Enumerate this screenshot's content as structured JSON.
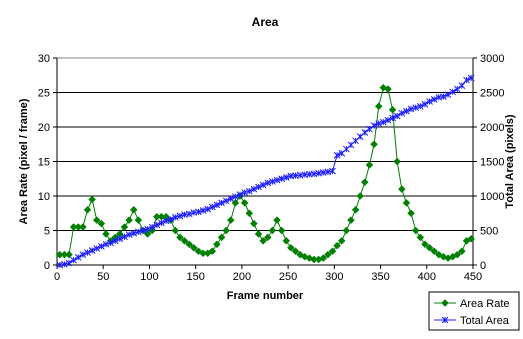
{
  "chart_data": {
    "type": "line",
    "title": "Area",
    "xlabel": "Frame number",
    "ylabel_left": "Area Rate (pixel / frame)",
    "ylabel_right": "Total Area (pixels)",
    "xlim": [
      0,
      450
    ],
    "ylim_left": [
      0,
      30
    ],
    "ylim_right": [
      0,
      3000
    ],
    "x_ticks": [
      0,
      50,
      100,
      150,
      200,
      250,
      300,
      350,
      400,
      450
    ],
    "y_left_ticks": [
      0,
      5,
      10,
      15,
      20,
      25,
      30
    ],
    "y_right_ticks": [
      0,
      500,
      1000,
      1500,
      2000,
      2500,
      3000
    ],
    "grid": "horizontal",
    "legend_position": "bottom-right",
    "colors": {
      "area_rate": "#008000",
      "total_area": "#1a1aff"
    },
    "series": [
      {
        "name": "Area Rate",
        "axis": "left",
        "marker": "diamond",
        "x": [
          3,
          8,
          13,
          18,
          23,
          28,
          33,
          38,
          43,
          48,
          53,
          58,
          63,
          68,
          73,
          78,
          83,
          88,
          93,
          98,
          103,
          108,
          113,
          118,
          123,
          128,
          133,
          138,
          143,
          148,
          153,
          158,
          163,
          168,
          173,
          178,
          183,
          188,
          193,
          198,
          203,
          208,
          213,
          218,
          223,
          228,
          233,
          238,
          243,
          248,
          253,
          258,
          263,
          268,
          273,
          278,
          283,
          288,
          293,
          298,
          303,
          308,
          313,
          318,
          323,
          328,
          333,
          338,
          343,
          348,
          353,
          358,
          363,
          368,
          373,
          378,
          383,
          388,
          393,
          398,
          403,
          408,
          413,
          418,
          423,
          428,
          433,
          438,
          443,
          448
        ],
        "values": [
          1.5,
          1.5,
          1.5,
          5.5,
          5.5,
          5.5,
          8,
          9.5,
          6.5,
          6,
          4.5,
          3.5,
          4,
          4.5,
          5.5,
          6.5,
          8,
          6.5,
          5,
          4.5,
          5,
          7,
          7,
          7,
          6.5,
          5,
          4,
          3.5,
          3,
          2.5,
          2,
          1.7,
          1.7,
          2,
          3,
          4,
          5,
          6.5,
          9,
          10,
          9,
          7.5,
          6,
          4.5,
          3.5,
          4,
          5,
          6.5,
          5,
          3.5,
          2.5,
          2,
          1.5,
          1.2,
          1,
          0.8,
          0.8,
          1,
          1.5,
          2,
          2.8,
          3.5,
          5,
          6.5,
          8,
          10,
          12,
          14.5,
          17.5,
          23,
          25.7,
          25.5,
          22.5,
          15,
          11,
          9,
          7.5,
          5,
          4,
          3,
          2.5,
          2,
          1.5,
          1.2,
          1,
          1.2,
          1.5,
          2,
          3.5,
          3.8
        ]
      },
      {
        "name": "Total Area",
        "axis": "right",
        "marker": "star",
        "x": [
          3,
          8,
          13,
          18,
          23,
          28,
          33,
          38,
          43,
          48,
          53,
          58,
          63,
          68,
          73,
          78,
          83,
          88,
          93,
          98,
          103,
          108,
          113,
          118,
          123,
          128,
          133,
          138,
          143,
          148,
          153,
          158,
          163,
          168,
          173,
          178,
          183,
          188,
          193,
          198,
          203,
          208,
          213,
          218,
          223,
          228,
          233,
          238,
          243,
          248,
          253,
          258,
          263,
          268,
          273,
          278,
          283,
          288,
          293,
          298,
          303,
          308,
          313,
          318,
          323,
          328,
          333,
          338,
          343,
          348,
          353,
          358,
          363,
          368,
          373,
          378,
          383,
          388,
          393,
          398,
          403,
          408,
          413,
          418,
          423,
          428,
          433,
          438,
          443,
          448
        ],
        "values": [
          0,
          10,
          30,
          70,
          110,
          150,
          180,
          210,
          240,
          270,
          300,
          320,
          350,
          380,
          410,
          440,
          460,
          480,
          500,
          520,
          550,
          580,
          610,
          640,
          660,
          690,
          710,
          730,
          740,
          760,
          770,
          790,
          810,
          840,
          870,
          900,
          930,
          960,
          990,
          1020,
          1050,
          1070,
          1100,
          1130,
          1160,
          1190,
          1210,
          1230,
          1250,
          1270,
          1290,
          1295,
          1300,
          1310,
          1315,
          1320,
          1330,
          1340,
          1350,
          1360,
          1590,
          1620,
          1680,
          1740,
          1800,
          1860,
          1920,
          1970,
          2020,
          2050,
          2070,
          2100,
          2130,
          2160,
          2200,
          2230,
          2260,
          2280,
          2300,
          2330,
          2370,
          2400,
          2430,
          2440,
          2470,
          2510,
          2550,
          2600,
          2680,
          2710
        ]
      }
    ]
  }
}
